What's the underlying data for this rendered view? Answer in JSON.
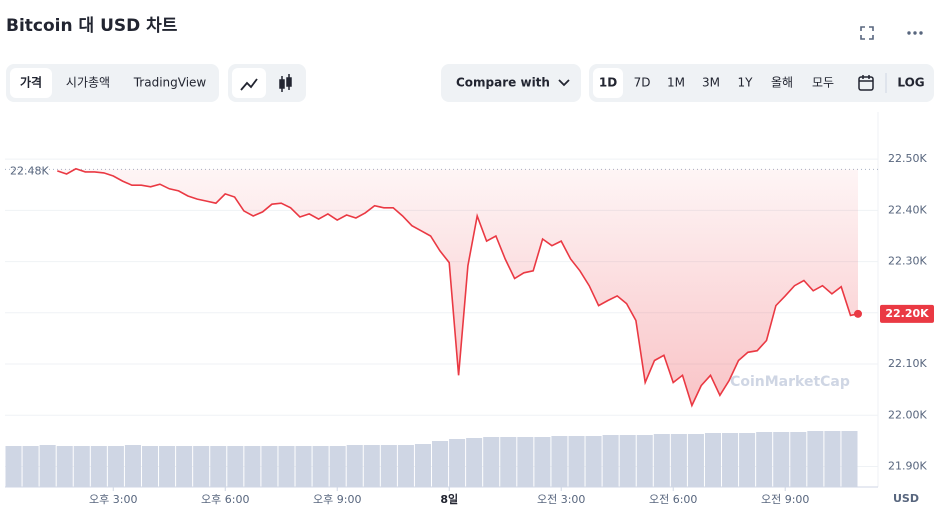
{
  "header": {
    "title": "Bitcoin 대 USD 차트",
    "tabs": [
      "가격",
      "시가총액",
      "TradingView"
    ],
    "compare": "Compare with",
    "ranges": [
      "1D",
      "7D",
      "1M",
      "3M",
      "1Y",
      "올해",
      "모두"
    ],
    "log": "LOG"
  },
  "chart_data": {
    "type": "line",
    "watermark": "CoinMarketCap",
    "y_unit": "USD",
    "x": [
      13.5,
      13.75,
      14,
      14.25,
      14.5,
      14.75,
      15,
      15.25,
      15.5,
      15.75,
      16,
      16.25,
      16.5,
      16.75,
      17,
      17.25,
      17.5,
      17.75,
      18,
      18.25,
      18.5,
      18.75,
      19,
      19.25,
      19.5,
      19.75,
      20,
      20.25,
      20.5,
      20.75,
      21,
      21.25,
      21.5,
      21.75,
      22,
      22.25,
      22.5,
      22.75,
      23,
      23.25,
      23.5,
      23.75,
      24,
      24.25,
      24.5,
      24.75,
      25,
      25.25,
      25.5,
      25.75,
      26,
      26.25,
      26.5,
      26.75,
      27,
      27.25,
      27.5,
      27.75,
      28,
      28.25,
      28.5,
      28.75,
      29,
      29.25,
      29.5,
      29.75,
      30,
      30.25,
      30.5,
      30.75,
      31,
      31.25,
      31.5,
      31.75,
      32,
      32.25,
      32.5,
      32.75,
      33,
      33.25,
      33.5,
      33.75,
      34,
      34.25,
      34.5,
      34.75,
      34.95
    ],
    "series": [
      {
        "name": "Price",
        "color": "#ea3943",
        "values": [
          22477,
          22471,
          22481,
          22475,
          22475,
          22473,
          22467,
          22457,
          22449,
          22449,
          22446,
          22451,
          22442,
          22438,
          22428,
          22422,
          22418,
          22414,
          22432,
          22426,
          22399,
          22389,
          22397,
          22412,
          22414,
          22405,
          22387,
          22393,
          22383,
          22393,
          22381,
          22391,
          22385,
          22395,
          22409,
          22405,
          22405,
          22389,
          22370,
          22360,
          22350,
          22321,
          22298,
          22078,
          22292,
          22389,
          22340,
          22350,
          22305,
          22267,
          22278,
          22282,
          22344,
          22331,
          22340,
          22305,
          22282,
          22253,
          22214,
          22224,
          22233,
          22218,
          22185,
          22064,
          22107,
          22117,
          22064,
          22078,
          22019,
          22058,
          22078,
          22039,
          22068,
          22107,
          22123,
          22126,
          22146,
          22214,
          22233,
          22253,
          22263,
          22243,
          22253,
          22237,
          22251,
          22195,
          22198
        ]
      }
    ],
    "current_label": "22.20K",
    "reference": {
      "value": 22480,
      "label": "22.48K"
    },
    "volume": {
      "color": "#cfd6e4",
      "values": [
        41,
        41,
        42,
        41,
        41,
        41,
        41,
        42,
        41,
        41,
        41,
        41,
        41,
        41,
        41,
        41,
        41,
        41,
        41,
        41,
        42,
        42,
        42,
        42,
        43,
        46,
        48,
        49,
        50,
        50,
        50,
        50,
        51,
        51,
        51,
        52,
        52,
        52,
        53,
        53,
        53,
        54,
        54,
        54,
        55,
        55,
        55,
        56,
        56,
        56
      ]
    },
    "xlim": [
      12.1,
      34.95
    ],
    "xticks": [
      {
        "value": 15,
        "label": "오후 3:00"
      },
      {
        "value": 18,
        "label": "오후 6:00"
      },
      {
        "value": 21,
        "label": "오후 9:00"
      },
      {
        "value": 24,
        "label": "8일"
      },
      {
        "value": 27,
        "label": "오전 3:00"
      },
      {
        "value": 30,
        "label": "오전 6:00"
      },
      {
        "value": 33,
        "label": "오전 9:00"
      }
    ],
    "ylim": [
      21860,
      22590
    ],
    "yticks": [
      {
        "value": 21900,
        "label": "21.90K"
      },
      {
        "value": 22000,
        "label": "22.00K"
      },
      {
        "value": 22100,
        "label": "22.10K"
      },
      {
        "value": 22200,
        "label": "22.20K"
      },
      {
        "value": 22300,
        "label": "22.30K"
      },
      {
        "value": 22400,
        "label": "22.40K"
      },
      {
        "value": 22500,
        "label": "22.50K"
      }
    ],
    "grid": true
  }
}
